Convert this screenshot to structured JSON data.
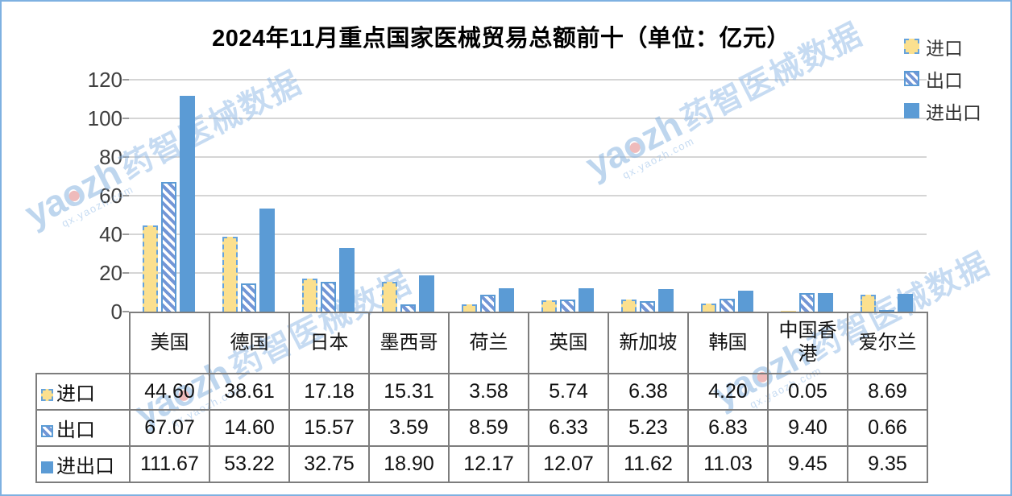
{
  "title": "2024年11月重点国家医械贸易总额前十（单位：亿元）",
  "legend": {
    "items": [
      {
        "label": "进口",
        "swatch": "import"
      },
      {
        "label": "出口",
        "swatch": "export"
      },
      {
        "label": "进出口",
        "swatch": "import-export"
      }
    ]
  },
  "watermark": {
    "latin_a": "ya",
    "latin_o": "o",
    "latin_b": "zh",
    "cjk": "药智医械数据",
    "sub": "qx.yaozh.com"
  },
  "colors": {
    "bar_blue": "#5B9BD5",
    "bar_yellow": "#FBE08F",
    "hatch_blue": "#7396D6",
    "dashed_border_blue": "#66A3DC",
    "table_border_gray": "#7d7d7d",
    "gridline_gray": "#D5D5D5",
    "frame_blue": "#7EB1E1",
    "watermark_blue": "#8FB9E6"
  },
  "chart_data": {
    "type": "bar",
    "title": "2024年11月重点国家医械贸易总额前十（单位：亿元）",
    "unit": "亿元",
    "categories": [
      "美国",
      "德国",
      "日本",
      "墨西哥",
      "荷兰",
      "英国",
      "新加坡",
      "韩国",
      "中国香港",
      "爱尔兰"
    ],
    "series": [
      {
        "name": "进口",
        "values": [
          44.6,
          38.61,
          17.18,
          15.31,
          3.58,
          5.74,
          6.38,
          4.2,
          0.05,
          8.69
        ]
      },
      {
        "name": "出口",
        "values": [
          67.07,
          14.6,
          15.57,
          3.59,
          8.59,
          6.33,
          5.23,
          6.83,
          9.4,
          0.66
        ]
      },
      {
        "name": "进出口",
        "values": [
          111.67,
          53.22,
          32.75,
          18.9,
          12.17,
          12.07,
          11.62,
          11.03,
          9.45,
          9.35
        ]
      }
    ],
    "ylim": [
      0,
      120
    ],
    "yticks": [
      0,
      20,
      40,
      60,
      80,
      100,
      120
    ],
    "grid": true,
    "legend_position": "top-right"
  },
  "table": {
    "header": [
      "美国",
      "德国",
      "日本",
      "墨西哥",
      "荷兰",
      "英国",
      "新加坡",
      "韩国",
      "中国香港",
      "爱尔兰"
    ],
    "rows": [
      {
        "label": "进口",
        "swatch": "import",
        "values": [
          "44.60",
          "38.61",
          "17.18",
          "15.31",
          "3.58",
          "5.74",
          "6.38",
          "4.20",
          "0.05",
          "8.69"
        ]
      },
      {
        "label": "出口",
        "swatch": "export",
        "values": [
          "67.07",
          "14.60",
          "15.57",
          "3.59",
          "8.59",
          "6.33",
          "5.23",
          "6.83",
          "9.40",
          "0.66"
        ]
      },
      {
        "label": "进出口",
        "swatch": "import-export",
        "values": [
          "111.67",
          "53.22",
          "32.75",
          "18.90",
          "12.17",
          "12.07",
          "11.62",
          "11.03",
          "9.45",
          "9.35"
        ]
      }
    ]
  }
}
